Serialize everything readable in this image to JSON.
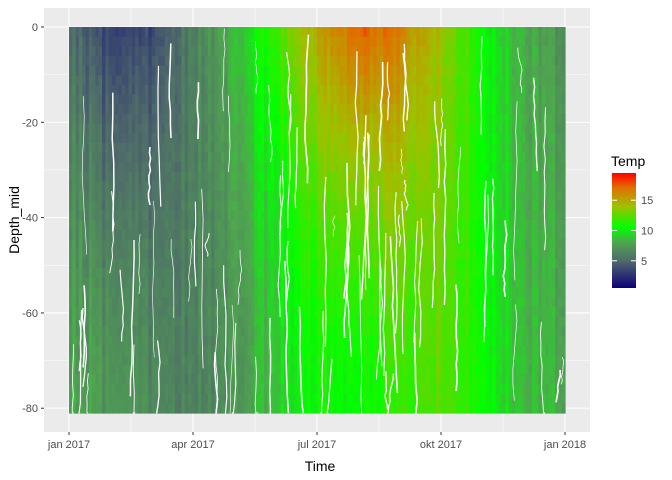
{
  "chart_data": {
    "type": "heatmap",
    "title": "",
    "xlabel": "Time",
    "ylabel": "Depth_mid",
    "x_ticks": [
      "jan 2017",
      "apr 2017",
      "jul 2017",
      "okt 2017",
      "jan 2018"
    ],
    "y_ticks": [
      "0",
      "-20",
      "-40",
      "-60",
      "-80"
    ],
    "y_tick_values": [
      0,
      -20,
      -40,
      -60,
      -80
    ],
    "x_range_months": [
      "2017-01",
      "2018-01"
    ],
    "y_range": [
      -81,
      0
    ],
    "grid": true,
    "legend": {
      "title": "Temp",
      "position": "right",
      "ticks": [
        "15",
        "10",
        "5"
      ],
      "tick_values": [
        15,
        10,
        5
      ],
      "range": [
        0.5,
        19.5
      ],
      "colors": [
        {
          "value": 0.5,
          "color": "#0d007a"
        },
        {
          "value": 5,
          "color": "#4f6a6a"
        },
        {
          "value": 8,
          "color": "#4fa64f"
        },
        {
          "value": 10.5,
          "color": "#00ff00"
        },
        {
          "value": 14,
          "color": "#a0c000"
        },
        {
          "value": 17,
          "color": "#e07000"
        },
        {
          "value": 19.5,
          "color": "#ff0000"
        }
      ]
    },
    "temperature_profile": {
      "months": [
        "2017-01",
        "2017-02",
        "2017-03",
        "2017-04",
        "2017-05",
        "2017-06",
        "2017-07",
        "2017-08",
        "2017-09",
        "2017-10",
        "2017-11",
        "2017-12",
        "2018-01"
      ],
      "surface": [
        5.5,
        3.0,
        3.5,
        6.0,
        8.5,
        12.0,
        15.0,
        17.5,
        16.5,
        14.0,
        10.5,
        8.0,
        7.0
      ],
      "bottom": [
        8.0,
        7.0,
        6.5,
        6.0,
        7.0,
        9.0,
        10.5,
        10.5,
        11.5,
        12.5,
        10.5,
        8.5,
        8.0
      ]
    }
  }
}
